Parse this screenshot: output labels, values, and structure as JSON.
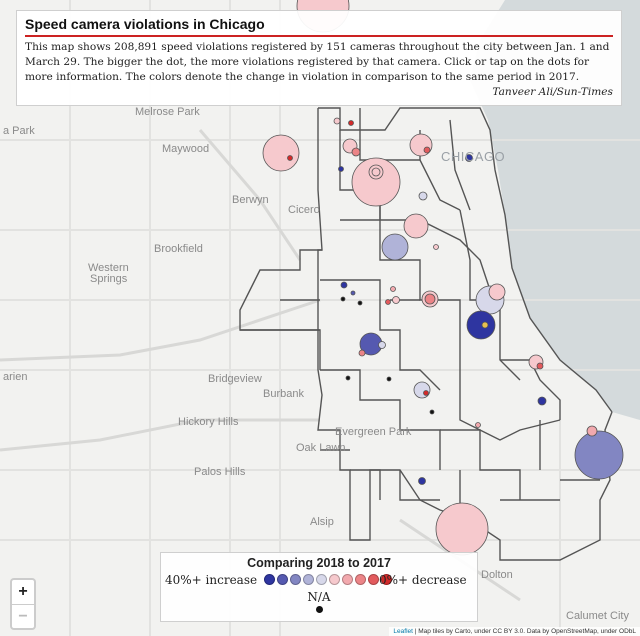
{
  "info": {
    "title": "Speed camera violations in Chicago",
    "text": "This map shows 208,891 speed violations registered by 151 cameras throughout the city between Jan. 1 and March 29. The bigger the dot, the more violations registered by that camera. Click or tap on the dots for more information. The colors denote the change in violation in comparison to the same period in 2017.",
    "credit": "Tanveer Ali/Sun-Times"
  },
  "places": [
    {
      "key": "park",
      "text": "a Park"
    },
    {
      "key": "melrose",
      "text": "Melrose Park"
    },
    {
      "key": "maywood",
      "text": "Maywood"
    },
    {
      "key": "berwyn",
      "text": "Berwyn"
    },
    {
      "key": "cicero",
      "text": "Cicero"
    },
    {
      "key": "brookfield",
      "text": "Brookfield"
    },
    {
      "key": "western",
      "text": "Western"
    },
    {
      "key": "springs",
      "text": "Springs"
    },
    {
      "key": "chicago",
      "text": "CHICAGO"
    },
    {
      "key": "bridgeview",
      "text": "Bridgeview"
    },
    {
      "key": "burbank",
      "text": "Burbank"
    },
    {
      "key": "arien",
      "text": "arien"
    },
    {
      "key": "hickory",
      "text": "Hickory Hills"
    },
    {
      "key": "evergreen",
      "text": "Evergreen Park"
    },
    {
      "key": "oaklawn",
      "text": "Oak Lawn"
    },
    {
      "key": "palos",
      "text": "Palos Hills"
    },
    {
      "key": "alsip",
      "text": "Alsip"
    },
    {
      "key": "dolton",
      "text": "Dolton"
    },
    {
      "key": "calumet",
      "text": "Calumet City"
    }
  ],
  "legend": {
    "title": "Comparing 2018 to 2017",
    "increase": "40%+ increase",
    "decrease": "0%+ decrease",
    "na": "N/A",
    "colors": [
      "#2e35a0",
      "#5559b0",
      "#8286c2",
      "#b0b3d8",
      "#d7d8ea",
      "#f6c9cd",
      "#f2a9ae",
      "#ec8487",
      "#e25a5d",
      "#d22a2a"
    ]
  },
  "zoom": {
    "in": "+",
    "out": "−"
  },
  "attribution": {
    "leaflet": "Leaflet",
    "text": " | Map tiles by Carto, under CC BY 3.0. Data by OpenStreetMap, under ODbL"
  },
  "colors": {
    "water": "#d4dadc",
    "land": "#f2f2f0",
    "boundary": "#555555"
  }
}
